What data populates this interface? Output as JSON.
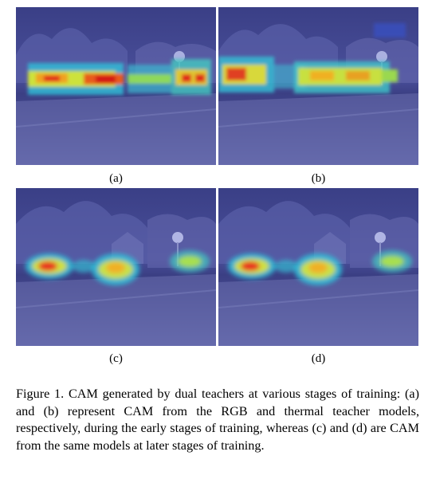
{
  "figure": {
    "panels": [
      {
        "label": "(a)"
      },
      {
        "label": "(b)"
      },
      {
        "label": "(c)"
      },
      {
        "label": "(d)"
      }
    ],
    "caption": "Figure 1.  CAM generated by dual teachers at various stages of training: (a) and (b) represent CAM from the RGB and thermal teacher models, respectively, during the early stages of training, whereas (c) and (d) are CAM from the same models at later stages of training."
  }
}
